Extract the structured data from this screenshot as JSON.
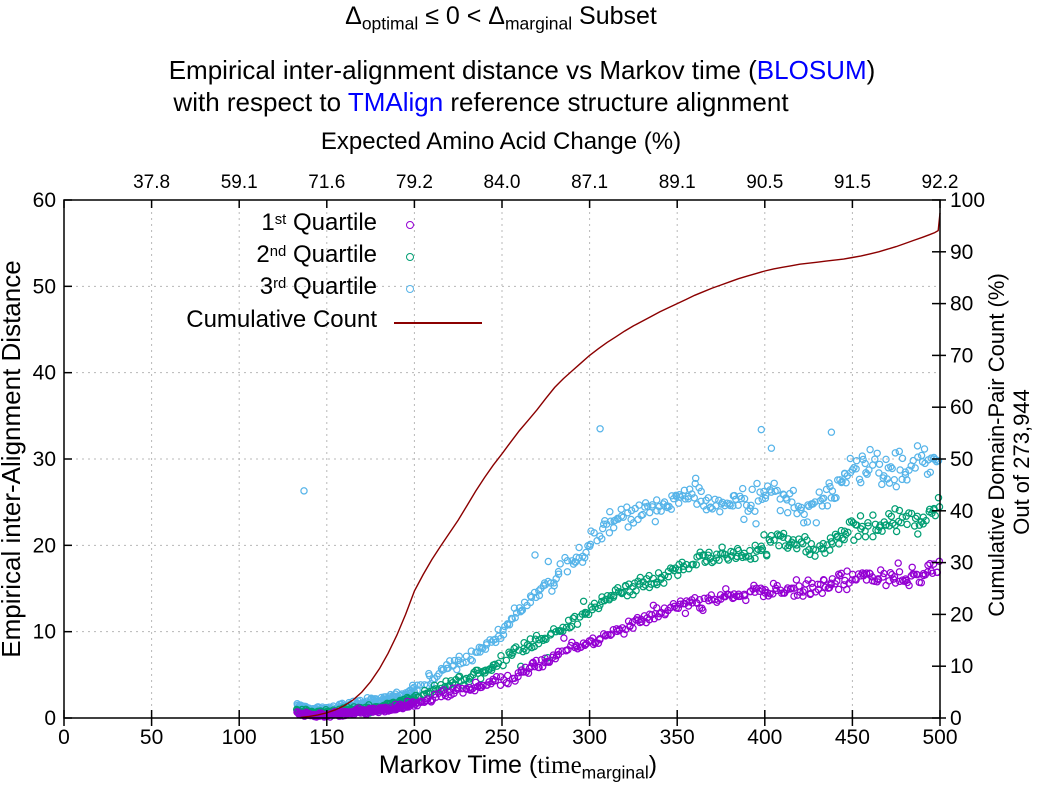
{
  "titles": {
    "line1": {
      "d1": "Δ",
      "sub1": "optimal",
      "mid": " ≤ 0 < ",
      "d2": "Δ",
      "sub2": "marginal",
      "tail": " Subset"
    },
    "line2_pre": "Empirical inter-alignment distance vs Markov time (",
    "line2_link": "BLOSUM",
    "line2_post": ")",
    "line3_pre": "with respect to ",
    "line3_link": "TMAlign",
    "line3_post": " reference structure alignment",
    "link_color": "#0000ff"
  },
  "legend": {
    "items": [
      {
        "base": "1",
        "sup": "st",
        "rest": " Quartile",
        "color": "#9400d3",
        "marker": "circle"
      },
      {
        "base": "2",
        "sup": "nd",
        "rest": " Quartile",
        "color": "#009e73",
        "marker": "circle"
      },
      {
        "base": "3",
        "sup": "rd",
        "rest": " Quartile",
        "color": "#56b4e9",
        "marker": "circle"
      },
      {
        "base": "Cumulative Count",
        "sup": "",
        "rest": "",
        "color": "#8b0000",
        "marker": "line"
      }
    ]
  },
  "x_axis": {
    "label_pre": "Markov Time (",
    "label_var": "time",
    "label_sub": "marginal",
    "label_post": ")",
    "ticks": [
      0,
      50,
      100,
      150,
      200,
      250,
      300,
      350,
      400,
      450,
      500
    ]
  },
  "x2_axis": {
    "label": "Expected Amino Acid Change (%)",
    "tick_positions": [
      50,
      100,
      150,
      200,
      250,
      300,
      350,
      400,
      450,
      500
    ],
    "tick_labels": [
      "37.8",
      "59.1",
      "71.6",
      "79.2",
      "84.0",
      "87.1",
      "89.1",
      "90.5",
      "91.5",
      "92.2"
    ]
  },
  "y_axis": {
    "label": "Empirical inter-Alignment Distance",
    "ticks": [
      0,
      10,
      20,
      30,
      40,
      50,
      60
    ]
  },
  "y2_axis": {
    "label_line1": "Cumulative Domain-Pair Count (%)",
    "label_line2": "Out of 273,944",
    "ticks": [
      0,
      10,
      20,
      30,
      40,
      50,
      60,
      70,
      80,
      90,
      100
    ]
  },
  "colors": {
    "grid": "#b8b8b8",
    "axis": "#000000",
    "background": "#ffffff"
  },
  "chart_data": {
    "type": "scatter",
    "x_range": [
      0,
      500
    ],
    "y_left_range": [
      0,
      60
    ],
    "y_right_range": [
      0,
      100
    ],
    "grid": true,
    "legend_position": "top-left",
    "scatter_x_start": 133,
    "dense_until": 200,
    "dense_step": 0.32,
    "sparse_step": 0.85,
    "series": [
      {
        "name": "1st Quartile",
        "kind": "scatter",
        "axis": "left",
        "color": "#9400d3",
        "seed": 42,
        "spread": [
          0.22,
          1.0
        ],
        "wobble": [
          0.4,
          9.0,
          1.7
        ],
        "stray_prob": 0.008,
        "stray_mag": 2.5,
        "trend": [
          [
            133,
            0.7
          ],
          [
            140,
            0.5
          ],
          [
            148,
            0.38
          ],
          [
            156,
            0.38
          ],
          [
            164,
            0.5
          ],
          [
            172,
            0.68
          ],
          [
            180,
            0.9
          ],
          [
            188,
            1.2
          ],
          [
            196,
            1.6
          ],
          [
            204,
            2.0
          ],
          [
            212,
            2.4
          ],
          [
            220,
            2.8
          ],
          [
            230,
            3.3
          ],
          [
            240,
            3.9
          ],
          [
            250,
            4.6
          ],
          [
            260,
            5.3
          ],
          [
            270,
            6.1
          ],
          [
            280,
            7.0
          ],
          [
            290,
            8.0
          ],
          [
            300,
            8.9
          ],
          [
            310,
            9.7
          ],
          [
            320,
            10.6
          ],
          [
            330,
            11.4
          ],
          [
            340,
            12.1
          ],
          [
            350,
            12.9
          ],
          [
            360,
            13.4
          ],
          [
            370,
            13.9
          ],
          [
            380,
            14.2
          ],
          [
            390,
            13.9
          ],
          [
            400,
            14.5
          ],
          [
            410,
            15.0
          ],
          [
            420,
            15.2
          ],
          [
            430,
            15.4
          ],
          [
            440,
            15.8
          ],
          [
            450,
            15.9
          ],
          [
            460,
            16.1
          ],
          [
            470,
            16.3
          ],
          [
            480,
            16.6
          ],
          [
            490,
            16.6
          ],
          [
            500,
            17.3
          ]
        ],
        "outliers": []
      },
      {
        "name": "2nd Quartile",
        "kind": "scatter",
        "axis": "left",
        "color": "#009e73",
        "seed": 1337,
        "spread": [
          0.25,
          1.3
        ],
        "wobble": [
          0.45,
          8.0,
          0.3
        ],
        "stray_prob": 0.01,
        "stray_mag": 3.0,
        "trend": [
          [
            133,
            1.0
          ],
          [
            140,
            0.75
          ],
          [
            148,
            0.6
          ],
          [
            156,
            0.62
          ],
          [
            164,
            0.78
          ],
          [
            172,
            1.0
          ],
          [
            180,
            1.3
          ],
          [
            188,
            1.65
          ],
          [
            196,
            2.1
          ],
          [
            204,
            2.6
          ],
          [
            212,
            3.2
          ],
          [
            220,
            3.9
          ],
          [
            230,
            4.7
          ],
          [
            240,
            5.6
          ],
          [
            250,
            6.6
          ],
          [
            260,
            7.7
          ],
          [
            270,
            8.9
          ],
          [
            280,
            10.2
          ],
          [
            290,
            11.4
          ],
          [
            300,
            12.5
          ],
          [
            310,
            13.6
          ],
          [
            320,
            14.8
          ],
          [
            330,
            15.8
          ],
          [
            340,
            16.5
          ],
          [
            350,
            17.2
          ],
          [
            360,
            17.9
          ],
          [
            370,
            18.4
          ],
          [
            380,
            19.3
          ],
          [
            390,
            18.9
          ],
          [
            400,
            20.0
          ],
          [
            410,
            20.4
          ],
          [
            420,
            19.8
          ],
          [
            430,
            19.6
          ],
          [
            440,
            21.3
          ],
          [
            450,
            22.0
          ],
          [
            460,
            21.5
          ],
          [
            470,
            22.3
          ],
          [
            480,
            23.0
          ],
          [
            490,
            23.4
          ],
          [
            500,
            24.8
          ]
        ],
        "outliers": []
      },
      {
        "name": "3rd Quartile",
        "kind": "scatter",
        "axis": "left",
        "color": "#56b4e9",
        "seed": 2024,
        "spread": [
          0.32,
          1.9
        ],
        "wobble": [
          0.55,
          7.5,
          4.0
        ],
        "stray_prob": 0.025,
        "stray_mag": 4.5,
        "trend": [
          [
            133,
            1.5
          ],
          [
            140,
            1.2
          ],
          [
            148,
            1.0
          ],
          [
            156,
            1.05
          ],
          [
            164,
            1.25
          ],
          [
            172,
            1.55
          ],
          [
            180,
            1.95
          ],
          [
            188,
            2.4
          ],
          [
            196,
            3.0
          ],
          [
            204,
            3.8
          ],
          [
            212,
            4.8
          ],
          [
            220,
            5.8
          ],
          [
            230,
            7.0
          ],
          [
            240,
            8.5
          ],
          [
            250,
            10.4
          ],
          [
            260,
            12.4
          ],
          [
            270,
            14.4
          ],
          [
            280,
            16.4
          ],
          [
            290,
            18.4
          ],
          [
            300,
            20.3
          ],
          [
            310,
            22.0
          ],
          [
            320,
            23.4
          ],
          [
            330,
            24.4
          ],
          [
            340,
            25.0
          ],
          [
            350,
            25.4
          ],
          [
            360,
            25.7
          ],
          [
            370,
            24.6
          ],
          [
            380,
            25.0
          ],
          [
            390,
            25.5
          ],
          [
            400,
            25.8
          ],
          [
            410,
            25.0
          ],
          [
            420,
            23.8
          ],
          [
            430,
            25.2
          ],
          [
            440,
            26.6
          ],
          [
            450,
            28.2
          ],
          [
            460,
            28.7
          ],
          [
            470,
            29.0
          ],
          [
            480,
            29.4
          ],
          [
            490,
            29.4
          ],
          [
            500,
            29.9
          ]
        ],
        "outliers": [
          [
            137,
            26.3
          ],
          [
            306,
            33.5
          ],
          [
            398,
            33.4
          ],
          [
            438,
            33.1
          ]
        ]
      },
      {
        "name": "Cumulative Count",
        "kind": "line",
        "axis": "right",
        "color": "#8b0000",
        "points": [
          [
            135,
            0.1
          ],
          [
            140,
            0.3
          ],
          [
            145,
            0.6
          ],
          [
            150,
            1.0
          ],
          [
            155,
            1.6
          ],
          [
            160,
            2.4
          ],
          [
            165,
            3.5
          ],
          [
            170,
            5.0
          ],
          [
            175,
            7.0
          ],
          [
            180,
            9.5
          ],
          [
            185,
            12.5
          ],
          [
            190,
            16.0
          ],
          [
            195,
            20.0
          ],
          [
            200,
            24.5
          ],
          [
            205,
            27.7
          ],
          [
            210,
            30.6
          ],
          [
            215,
            33.2
          ],
          [
            220,
            35.7
          ],
          [
            225,
            38.2
          ],
          [
            230,
            41.0
          ],
          [
            235,
            43.8
          ],
          [
            240,
            46.4
          ],
          [
            245,
            48.8
          ],
          [
            250,
            51.0
          ],
          [
            255,
            53.3
          ],
          [
            260,
            55.5
          ],
          [
            265,
            57.5
          ],
          [
            270,
            59.5
          ],
          [
            275,
            61.7
          ],
          [
            280,
            63.8
          ],
          [
            285,
            65.5
          ],
          [
            290,
            67.0
          ],
          [
            295,
            68.5
          ],
          [
            300,
            70.0
          ],
          [
            305,
            71.3
          ],
          [
            310,
            72.5
          ],
          [
            315,
            73.6
          ],
          [
            320,
            74.7
          ],
          [
            325,
            75.7
          ],
          [
            330,
            76.6
          ],
          [
            335,
            77.5
          ],
          [
            340,
            78.4
          ],
          [
            345,
            79.2
          ],
          [
            350,
            80.0
          ],
          [
            355,
            80.8
          ],
          [
            360,
            81.6
          ],
          [
            365,
            82.3
          ],
          [
            370,
            83.0
          ],
          [
            375,
            83.6
          ],
          [
            380,
            84.2
          ],
          [
            385,
            84.8
          ],
          [
            390,
            85.3
          ],
          [
            395,
            85.8
          ],
          [
            400,
            86.3
          ],
          [
            405,
            86.7
          ],
          [
            410,
            87.0
          ],
          [
            415,
            87.3
          ],
          [
            420,
            87.6
          ],
          [
            425,
            87.8
          ],
          [
            430,
            88.0
          ],
          [
            435,
            88.2
          ],
          [
            440,
            88.4
          ],
          [
            445,
            88.6
          ],
          [
            450,
            88.9
          ],
          [
            455,
            89.2
          ],
          [
            460,
            89.6
          ],
          [
            465,
            90.0
          ],
          [
            470,
            90.5
          ],
          [
            475,
            91.0
          ],
          [
            480,
            91.6
          ],
          [
            485,
            92.2
          ],
          [
            490,
            92.8
          ],
          [
            494,
            93.3
          ],
          [
            497,
            93.7
          ],
          [
            499,
            94.1
          ],
          [
            500,
            97.5
          ]
        ]
      }
    ]
  }
}
